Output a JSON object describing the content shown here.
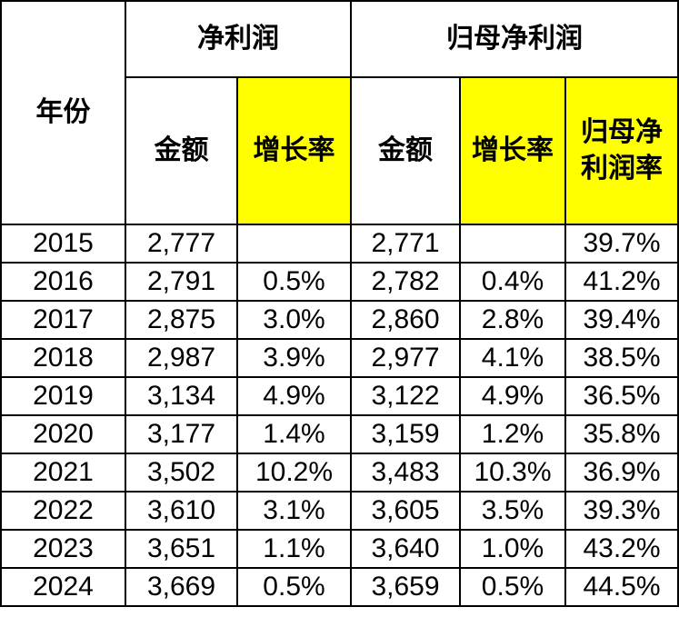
{
  "colors": {
    "highlight": "#FFFF00",
    "border": "#000000",
    "text": "#000000",
    "background": "#FFFFFF"
  },
  "chart_data": {
    "type": "table",
    "title": "",
    "header": {
      "year": "年份",
      "groups": [
        {
          "label": "净利润",
          "colspan": 2
        },
        {
          "label": "归母净利润",
          "colspan": 3
        }
      ],
      "subcolumns": [
        {
          "label": "金额",
          "highlight": false
        },
        {
          "label": "增长率",
          "highlight": true
        },
        {
          "label": "金额",
          "highlight": false
        },
        {
          "label": "增长率",
          "highlight": true
        },
        {
          "label": "归母净利润率",
          "display": "归母净\n利润率",
          "highlight": true
        }
      ]
    },
    "columns": [
      "年份",
      "净利润 金额",
      "净利润 增长率",
      "归母净利润 金额",
      "归母净利润 增长率",
      "归母净利润率"
    ],
    "highlighted_column_indexes": [
      2,
      4,
      5
    ],
    "rows": [
      [
        "2015",
        "2,777",
        "",
        "2,771",
        "",
        "39.7%"
      ],
      [
        "2016",
        "2,791",
        "0.5%",
        "2,782",
        "0.4%",
        "41.2%"
      ],
      [
        "2017",
        "2,875",
        "3.0%",
        "2,860",
        "2.8%",
        "39.4%"
      ],
      [
        "2018",
        "2,987",
        "3.9%",
        "2,977",
        "4.1%",
        "38.5%"
      ],
      [
        "2019",
        "3,134",
        "4.9%",
        "3,122",
        "4.9%",
        "36.5%"
      ],
      [
        "2020",
        "3,177",
        "1.4%",
        "3,159",
        "1.2%",
        "35.8%"
      ],
      [
        "2021",
        "3,502",
        "10.2%",
        "3,483",
        "10.3%",
        "36.9%"
      ],
      [
        "2022",
        "3,610",
        "3.1%",
        "3,605",
        "3.5%",
        "39.3%"
      ],
      [
        "2023",
        "3,651",
        "1.1%",
        "3,640",
        "1.0%",
        "43.2%"
      ],
      [
        "2024",
        "3,669",
        "0.5%",
        "3,659",
        "0.5%",
        "44.5%"
      ]
    ]
  }
}
